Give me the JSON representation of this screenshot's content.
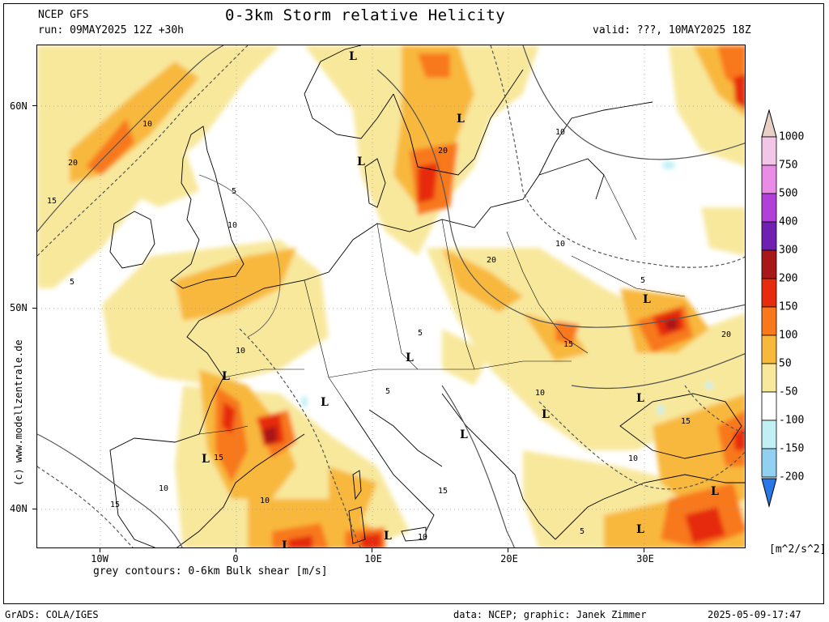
{
  "header": {
    "model": "NCEP GFS",
    "run": "run: 09MAY2025 12Z +30h",
    "title": "0-3km Storm relative Helicity",
    "valid": "valid: ???, 10MAY2025 18Z"
  },
  "axes": {
    "lat_labels": [
      "60N",
      "50N",
      "40N"
    ],
    "lon_labels": [
      "10W",
      "0",
      "10E",
      "20E",
      "30E"
    ]
  },
  "colorbar": {
    "labels": [
      "1000",
      "750",
      "500",
      "400",
      "300",
      "200",
      "150",
      "100",
      "50",
      "-50",
      "-100",
      "-150",
      "-200"
    ],
    "colors": [
      "#f2c6e6",
      "#e88ce6",
      "#b040d8",
      "#7020b0",
      "#a81818",
      "#e62c0c",
      "#f8781a",
      "#f8b83c",
      "#f8e89c",
      "#ffffff",
      "#c0f0f4",
      "#90d0f0",
      "#50a8f0",
      "#2878e8"
    ],
    "top_cap_color": "#e8d0c8",
    "units": "[m^2/s^2]"
  },
  "map": {
    "low_marker": "L",
    "contour_labels": [
      "5",
      "10",
      "15",
      "20"
    ],
    "background": "#ffffff",
    "coast_color": "#000000",
    "contour_color": "#555555"
  },
  "caption": "grey contours: 0-6km Bulk shear [m/s]",
  "credit": "(c) www.modellzentrale.de",
  "footer": {
    "left": "GrADS: COLA/IGES",
    "center": "data: NCEP; graphic: Janek Zimmer",
    "right": "2025-05-09-17:47"
  }
}
